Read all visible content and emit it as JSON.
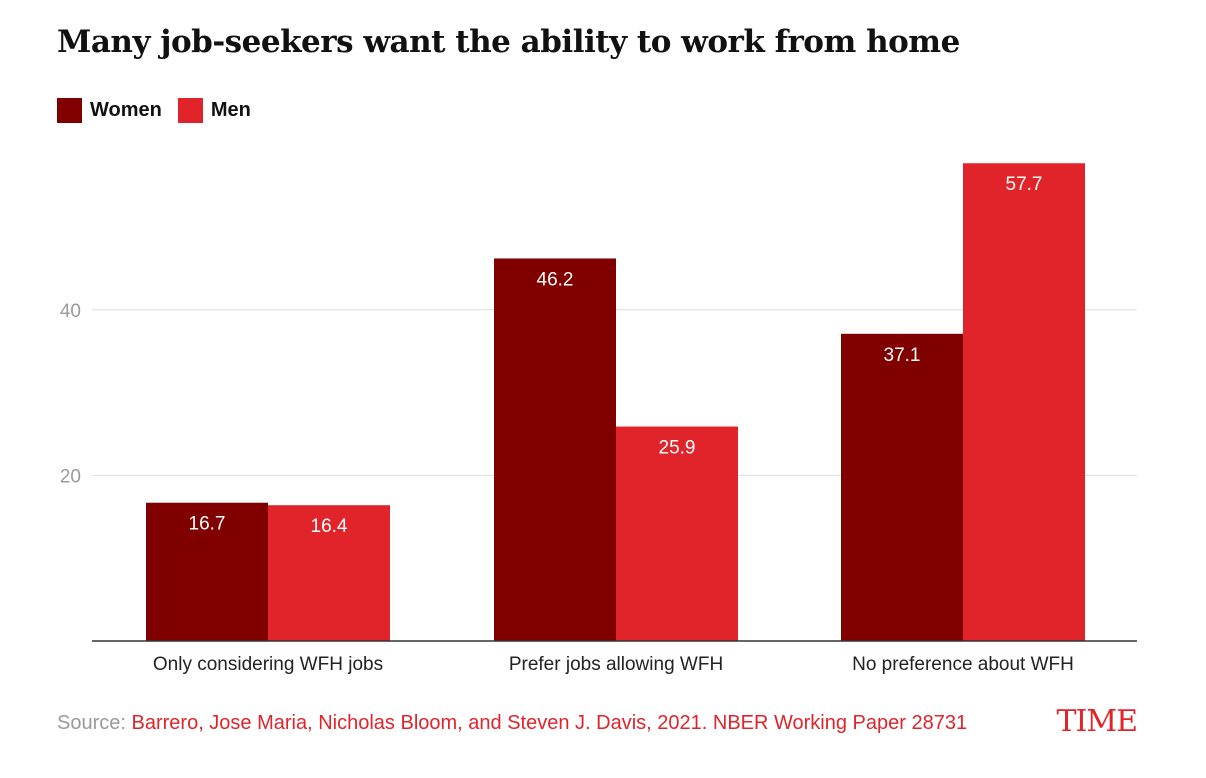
{
  "title": "Many job-seekers want the ability to work from home",
  "source_label": "Source:",
  "source_text": "Barrero, Jose Maria, Nicholas Bloom, and Steven J. Davis, 2021. NBER Working Paper 28731",
  "brand": "TIME",
  "colors": {
    "women": "#800000",
    "men": "#e0242a",
    "axis": "#333333",
    "grid": "#dddddd"
  },
  "chart_data": {
    "type": "bar",
    "title": "Many job-seekers want the ability to work from home",
    "categories": [
      "Only considering WFH jobs",
      "Prefer jobs allowing WFH",
      "No preference about WFH"
    ],
    "series": [
      {
        "name": "Women",
        "values": [
          16.7,
          46.2,
          37.1
        ]
      },
      {
        "name": "Men",
        "values": [
          16.4,
          25.9,
          57.7
        ]
      }
    ],
    "yticks": [
      20,
      40
    ],
    "ylim": [
      0,
      60
    ],
    "grid": true,
    "legend": "top-left"
  }
}
